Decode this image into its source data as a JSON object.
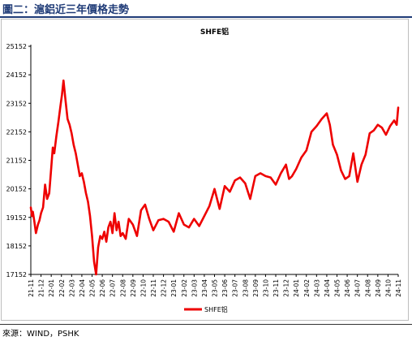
{
  "header": {
    "title": "圖二：滬鋁近三年價格走勢"
  },
  "footer": {
    "source": "來源：WIND，PSHK"
  },
  "chart_data": {
    "type": "line",
    "title": "SHFE铝",
    "y_ticks": [
      17152,
      18152,
      19152,
      20152,
      21152,
      22152,
      23152,
      24152,
      25152
    ],
    "ylim": [
      17152,
      25152
    ],
    "x_labels": [
      "21-11",
      "21-12",
      "22-01",
      "22-02",
      "22-03",
      "22-04",
      "22-05",
      "22-06",
      "22-07",
      "22-08",
      "22-09",
      "22-10",
      "22-11",
      "22-12",
      "23-01",
      "23-02",
      "23-03",
      "23-04",
      "23-05",
      "23-06",
      "23-07",
      "23-08",
      "23-09",
      "23-10",
      "23-11",
      "23-12",
      "24-01",
      "24-02",
      "24-03",
      "24-04",
      "24-05",
      "24-06",
      "24-07",
      "24-08",
      "24-09",
      "24-10",
      "24-11"
    ],
    "legend": {
      "placement": "bottom-center"
    },
    "grid": false,
    "color": "#ee0000",
    "series": [
      {
        "name": "SHFE铝",
        "x": [
          0,
          0.1,
          0.2,
          0.35,
          0.5,
          0.7,
          0.85,
          1,
          1.2,
          1.4,
          1.6,
          1.8,
          2,
          2.15,
          2.3,
          2.5,
          2.7,
          2.9,
          3.05,
          3.2,
          3.4,
          3.6,
          3.8,
          4,
          4.2,
          4.4,
          4.6,
          4.8,
          5,
          5.2,
          5.4,
          5.6,
          5.8,
          6,
          6.2,
          6.4,
          6.6,
          6.8,
          7,
          7.2,
          7.4,
          7.6,
          7.8,
          8,
          8.2,
          8.4,
          8.6,
          8.8,
          9,
          9.3,
          9.6,
          10,
          10.4,
          10.8,
          11.2,
          11.6,
          12,
          12.5,
          13,
          13.5,
          14,
          14.5,
          15,
          15.5,
          16,
          16.5,
          17,
          17.5,
          18,
          18.5,
          19,
          19.5,
          20,
          20.5,
          21,
          21.5,
          22,
          22.5,
          23,
          23.5,
          24,
          24.5,
          25,
          25.3,
          25.6,
          26,
          26.5,
          27,
          27.5,
          28,
          28.5,
          29,
          29.3,
          29.6,
          30,
          30.4,
          30.8,
          31.2,
          31.6,
          32,
          32.4,
          32.8,
          33.2,
          33.6,
          34,
          34.4,
          34.8,
          35.2,
          35.6,
          35.85,
          36
        ],
        "values": [
          19500,
          19200,
          19350,
          19000,
          18600,
          18900,
          19050,
          19300,
          19500,
          20300,
          19800,
          20000,
          20900,
          21600,
          21400,
          22000,
          22500,
          23050,
          23450,
          23950,
          23250,
          22600,
          22400,
          22100,
          21700,
          21400,
          21000,
          20600,
          20700,
          20400,
          20000,
          19700,
          19200,
          18500,
          17600,
          17152,
          18100,
          18500,
          18400,
          18650,
          18300,
          18800,
          19000,
          18600,
          19300,
          18700,
          19000,
          18500,
          18600,
          18400,
          19100,
          18900,
          18500,
          19400,
          19600,
          19100,
          18700,
          19050,
          19100,
          19000,
          18650,
          19300,
          18900,
          18800,
          19100,
          18850,
          19200,
          19550,
          20150,
          19450,
          20250,
          20050,
          20450,
          20550,
          20350,
          19800,
          20600,
          20700,
          20600,
          20550,
          20300,
          20700,
          21000,
          20500,
          20600,
          20850,
          21250,
          21500,
          22150,
          22350,
          22600,
          22800,
          22400,
          21700,
          21350,
          20800,
          20500,
          20600,
          21400,
          20400,
          21000,
          21350,
          22100,
          22200,
          22400,
          22300,
          22050,
          22350,
          22550,
          22400,
          23000
        ]
      }
    ]
  }
}
